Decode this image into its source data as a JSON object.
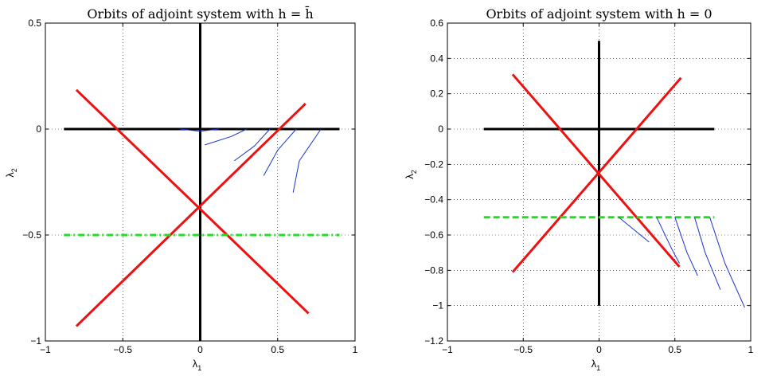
{
  "chart_data": [
    {
      "type": "line",
      "title": "Orbits of adjoint system with h = h̄",
      "xlabel": "λ1",
      "ylabel": "λ2",
      "xlim": [
        -1,
        1
      ],
      "ylim": [
        -1,
        0.5
      ],
      "xticks": [
        -1,
        -0.5,
        0,
        0.5,
        1
      ],
      "yticks": [
        -1,
        -0.5,
        0,
        0.5
      ],
      "xtick_labels": [
        "−1",
        "−0.5",
        "0",
        "0.5",
        "1"
      ],
      "ytick_labels": [
        "−1",
        "−0.5",
        "0",
        "0.5"
      ],
      "grid": true,
      "series": [
        {
          "color": "#000000",
          "width": 3,
          "dash": "",
          "points": [
            [
              -0.88,
              0
            ],
            [
              0.9,
              0
            ]
          ]
        },
        {
          "color": "#000000",
          "width": 3,
          "dash": "",
          "points": [
            [
              0,
              -1
            ],
            [
              0,
              0.5
            ]
          ]
        },
        {
          "color": "#ee1111",
          "width": 3,
          "dash": "",
          "points": [
            [
              -0.8,
              0.185
            ],
            [
              0.7,
              -0.87
            ]
          ]
        },
        {
          "color": "#ee1111",
          "width": 3,
          "dash": "",
          "points": [
            [
              -0.8,
              -0.93
            ],
            [
              0.68,
              0.12
            ]
          ]
        },
        {
          "color": "#22dd22",
          "width": 3,
          "dash": "8,4,2,4",
          "points": [
            [
              -0.88,
              -0.5
            ],
            [
              0.9,
              -0.5
            ]
          ]
        },
        {
          "color": "#1a33cc",
          "width": 1,
          "dash": "",
          "points": [
            [
              -0.13,
              0
            ],
            [
              0,
              -0.01
            ],
            [
              0.12,
              0
            ]
          ]
        },
        {
          "color": "#1a33cc",
          "width": 1,
          "dash": "",
          "points": [
            [
              0.03,
              -0.075
            ],
            [
              0.2,
              -0.035
            ],
            [
              0.3,
              0
            ]
          ]
        },
        {
          "color": "#1a33cc",
          "width": 1,
          "dash": "",
          "points": [
            [
              0.22,
              -0.15
            ],
            [
              0.35,
              -0.08
            ],
            [
              0.45,
              0
            ]
          ]
        },
        {
          "color": "#1a33cc",
          "width": 1,
          "dash": "",
          "points": [
            [
              0.41,
              -0.22
            ],
            [
              0.5,
              -0.1
            ],
            [
              0.62,
              0
            ]
          ]
        },
        {
          "color": "#1a33cc",
          "width": 1,
          "dash": "",
          "points": [
            [
              0.6,
              -0.3
            ],
            [
              0.64,
              -0.15
            ],
            [
              0.78,
              0
            ]
          ]
        }
      ]
    },
    {
      "type": "line",
      "title": "Orbits of adjoint system with h = 0",
      "xlabel": "λ1",
      "ylabel": "λ2",
      "xlim": [
        -1,
        1
      ],
      "ylim": [
        -1.2,
        0.6
      ],
      "xticks": [
        -1,
        -0.5,
        0,
        0.5,
        1
      ],
      "yticks": [
        -1.2,
        -1,
        -0.8,
        -0.6,
        -0.4,
        -0.2,
        0,
        0.2,
        0.4,
        0.6
      ],
      "xtick_labels": [
        "−1",
        "−0.5",
        "0",
        "0.5",
        "1"
      ],
      "ytick_labels": [
        "−1.2",
        "−1",
        "−0.8",
        "−0.6",
        "−0.4",
        "−0.2",
        "0",
        "0.2",
        "0.4",
        "0.6"
      ],
      "grid": true,
      "series": [
        {
          "color": "#000000",
          "width": 3,
          "dash": "",
          "points": [
            [
              -0.76,
              0
            ],
            [
              0.76,
              0
            ]
          ]
        },
        {
          "color": "#000000",
          "width": 3,
          "dash": "",
          "points": [
            [
              0,
              -1
            ],
            [
              0,
              0.5
            ]
          ]
        },
        {
          "color": "#ee1111",
          "width": 3,
          "dash": "",
          "points": [
            [
              -0.57,
              0.31
            ],
            [
              0.53,
              -0.78
            ]
          ]
        },
        {
          "color": "#ee1111",
          "width": 3,
          "dash": "",
          "points": [
            [
              -0.57,
              -0.81
            ],
            [
              0.54,
              0.29
            ]
          ]
        },
        {
          "color": "#22dd22",
          "width": 3,
          "dash": "8,4",
          "points": [
            [
              -0.76,
              -0.5
            ],
            [
              0.76,
              -0.5
            ]
          ]
        },
        {
          "color": "#1a33cc",
          "width": 1,
          "dash": "",
          "points": [
            [
              0.13,
              -0.5
            ],
            [
              0.33,
              -0.64
            ]
          ]
        },
        {
          "color": "#1a33cc",
          "width": 1,
          "dash": "",
          "points": [
            [
              0.38,
              -0.5
            ],
            [
              0.48,
              -0.68
            ],
            [
              0.53,
              -0.76
            ]
          ]
        },
        {
          "color": "#1a33cc",
          "width": 1,
          "dash": "",
          "points": [
            [
              0.5,
              -0.5
            ],
            [
              0.58,
              -0.7
            ],
            [
              0.65,
              -0.83
            ]
          ]
        },
        {
          "color": "#1a33cc",
          "width": 1,
          "dash": "",
          "points": [
            [
              0.63,
              -0.5
            ],
            [
              0.7,
              -0.7
            ],
            [
              0.8,
              -0.91
            ]
          ]
        },
        {
          "color": "#1a33cc",
          "width": 1,
          "dash": "",
          "points": [
            [
              0.73,
              -0.5
            ],
            [
              0.83,
              -0.76
            ],
            [
              0.96,
              -1.01
            ]
          ]
        }
      ]
    }
  ]
}
